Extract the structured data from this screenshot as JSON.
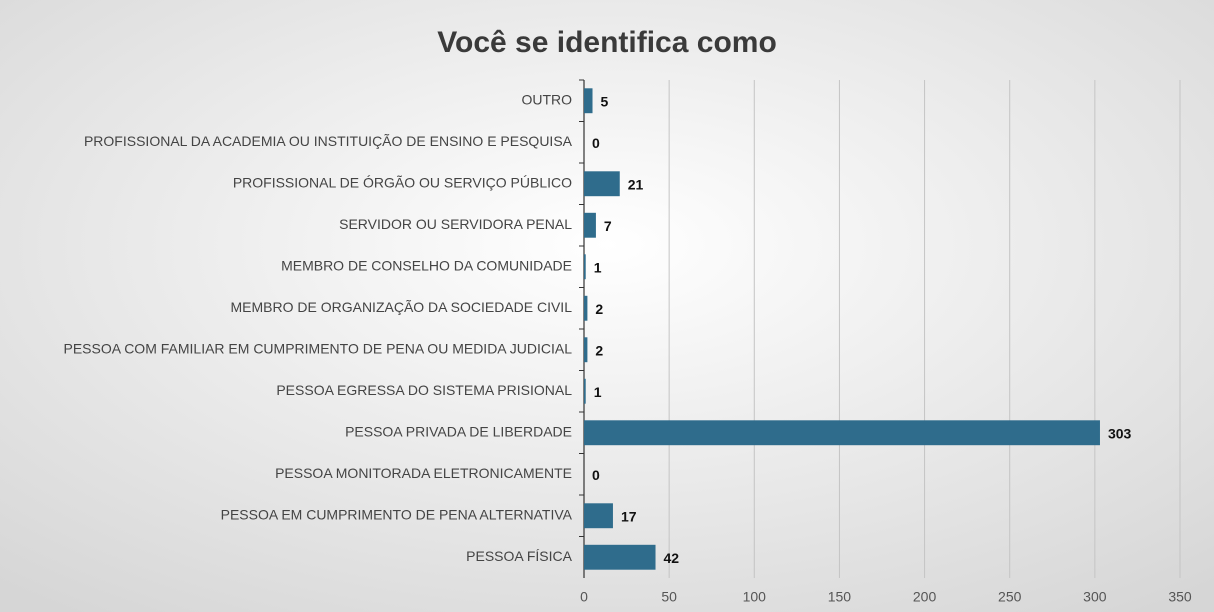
{
  "chart_data": {
    "type": "bar",
    "orientation": "horizontal",
    "title": "Você se identifica como",
    "categories": [
      "OUTRO",
      "PROFISSIONAL DA ACADEMIA OU INSTITUIÇÃO DE ENSINO E PESQUISA",
      "PROFISSIONAL DE ÓRGÃO OU SERVIÇO PÚBLICO",
      "SERVIDOR OU SERVIDORA PENAL",
      "MEMBRO DE CONSELHO DA COMUNIDADE",
      "MEMBRO DE ORGANIZAÇÃO DA SOCIEDADE CIVIL",
      "PESSOA COM FAMILIAR EM CUMPRIMENTO DE PENA OU MEDIDA JUDICIAL",
      "PESSOA EGRESSA DO SISTEMA PRISIONAL",
      "PESSOA PRIVADA DE LIBERDADE",
      "PESSOA MONITORADA ELETRONICAMENTE",
      "PESSOA EM CUMPRIMENTO DE PENA ALTERNATIVA",
      "PESSOA FÍSICA"
    ],
    "values": [
      5,
      0,
      21,
      7,
      1,
      2,
      2,
      1,
      303,
      0,
      17,
      42
    ],
    "color": "#2f6c8c",
    "xlim": [
      0,
      350
    ],
    "xticks": [
      0,
      50,
      100,
      150,
      200,
      250,
      300,
      350
    ],
    "grid": true
  }
}
